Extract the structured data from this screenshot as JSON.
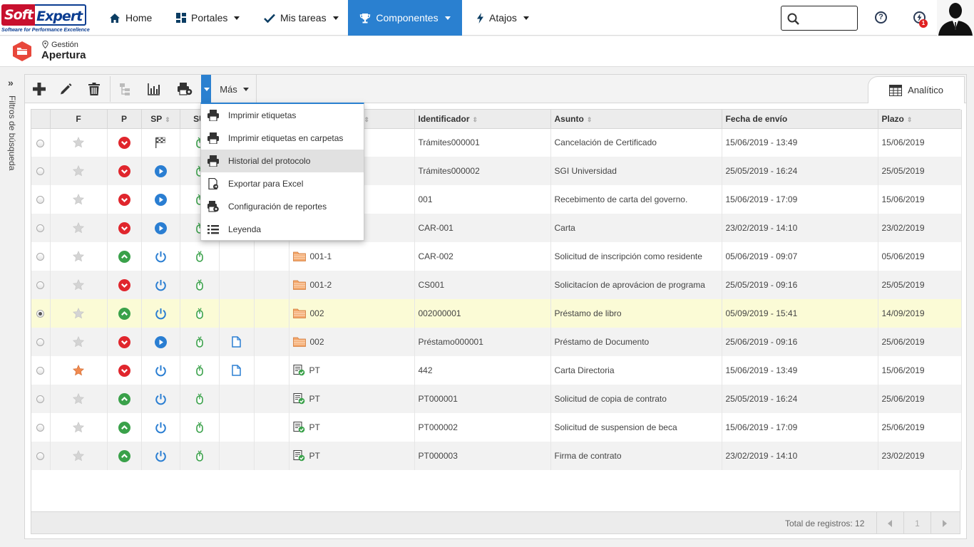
{
  "brand": {
    "logo_left": "Soft",
    "logo_right": "Expert",
    "tagline": "Software for Performance Excellence"
  },
  "nav": {
    "home": "Home",
    "portales": "Portales",
    "mis_tareas": "Mis tareas",
    "componentes": "Componentes",
    "atajos": "Atajos"
  },
  "header": {
    "notification_count": "1"
  },
  "breadcrumb": {
    "parent": "Gestión",
    "title": "Apertura"
  },
  "sidebar": {
    "filter_label": "Filtros de búsqueda"
  },
  "toolbar": {
    "more_label": "Más",
    "tab_analitico": "Analítico"
  },
  "menu": {
    "items": [
      "Imprimir etiquetas",
      "Imprimir etiquetas en carpetas",
      "Historial del protocolo",
      "Exportar para Excel",
      "Configuración de reportes",
      "Leyenda"
    ]
  },
  "grid": {
    "columns": [
      "F",
      "P",
      "SP",
      "SU",
      "Identificador",
      "Asunto",
      "Fecha de envío",
      "Plazo"
    ],
    "rows": [
      {
        "fav": false,
        "p": "down",
        "sp": "flag",
        "doc": false,
        "folder": "",
        "folder_icon": "",
        "id": "Trámites000001",
        "asunto": "Cancelación de Certificado",
        "fecha": "15/06/2019 - 13:49",
        "plazo": "15/06/2019",
        "selected": false
      },
      {
        "fav": false,
        "p": "down",
        "sp": "play",
        "doc": false,
        "folder": "",
        "folder_icon": "",
        "id": "Trámites000002",
        "asunto": "SGI Universidad",
        "fecha": "25/05/2019 - 16:24",
        "plazo": "25/05/2019",
        "selected": false
      },
      {
        "fav": false,
        "p": "down",
        "sp": "play",
        "doc": false,
        "folder": "",
        "folder_icon": "",
        "id": "001",
        "asunto": "Recebimento de carta del governo.",
        "fecha": "15/06/2019 - 17:09",
        "plazo": "15/06/2019",
        "selected": false
      },
      {
        "fav": false,
        "p": "down",
        "sp": "play",
        "doc": false,
        "folder": "",
        "folder_icon": "",
        "id": "CAR-001",
        "asunto": "Carta",
        "fecha": "23/02/2019 - 14:10",
        "plazo": "23/02/2019",
        "selected": false
      },
      {
        "fav": false,
        "p": "up",
        "sp": "power",
        "doc": false,
        "folder": "001-1",
        "folder_icon": "folder",
        "id": "CAR-002",
        "asunto": "Solicitud de inscripción como residente",
        "fecha": "05/06/2019 - 09:07",
        "plazo": "05/06/2019",
        "selected": false
      },
      {
        "fav": false,
        "p": "down",
        "sp": "power",
        "doc": false,
        "folder": "001-2",
        "folder_icon": "folder",
        "id": "CS001",
        "asunto": "Solicitacíon de aprovácion de programa",
        "fecha": "25/05/2019 - 09:16",
        "plazo": "25/05/2019",
        "selected": false
      },
      {
        "fav": false,
        "p": "up",
        "sp": "power",
        "doc": false,
        "folder": "002",
        "folder_icon": "folder",
        "id": "002000001",
        "asunto": "Préstamo de libro",
        "fecha": "05/09/2019 - 15:41",
        "plazo": "14/09/2019",
        "selected": true
      },
      {
        "fav": false,
        "p": "down",
        "sp": "play",
        "doc": true,
        "folder": "002",
        "folder_icon": "folder",
        "id": "Préstamo000001",
        "asunto": "Préstamo de Documento",
        "fecha": "25/06/2019 - 09:16",
        "plazo": "25/06/2019",
        "selected": false
      },
      {
        "fav": true,
        "p": "down",
        "sp": "power",
        "doc": true,
        "folder": "PT",
        "folder_icon": "checklist",
        "id": "442",
        "asunto": "Carta Directoria",
        "fecha": "15/06/2019 - 13:49",
        "plazo": "15/06/2019",
        "selected": false
      },
      {
        "fav": false,
        "p": "up",
        "sp": "power",
        "doc": false,
        "folder": "PT",
        "folder_icon": "checklist",
        "id": "PT000001",
        "asunto": "Solicitud de copia de contrato",
        "fecha": "25/05/2019 - 16:24",
        "plazo": "25/06/2019",
        "selected": false
      },
      {
        "fav": false,
        "p": "up",
        "sp": "power",
        "doc": false,
        "folder": "PT",
        "folder_icon": "checklist",
        "id": "PT000002",
        "asunto": "Solicitud de suspension de beca",
        "fecha": "15/06/2019 - 17:09",
        "plazo": "25/06/2019",
        "selected": false
      },
      {
        "fav": false,
        "p": "up",
        "sp": "power",
        "doc": false,
        "folder": "PT",
        "folder_icon": "checklist",
        "id": "PT000003",
        "asunto": "Firma de contrato",
        "fecha": "23/02/2019 - 14:10",
        "plazo": "23/02/2019",
        "selected": false
      }
    ]
  },
  "footer": {
    "total_label": "Total de registros: 12",
    "page": "1"
  },
  "colors": {
    "accent": "#2a80d0",
    "danger": "#e0262d",
    "success": "#3aa14a",
    "brand_red": "#c8102e",
    "brand_blue": "#0b3d91",
    "selected_row": "#fbfbd6"
  }
}
